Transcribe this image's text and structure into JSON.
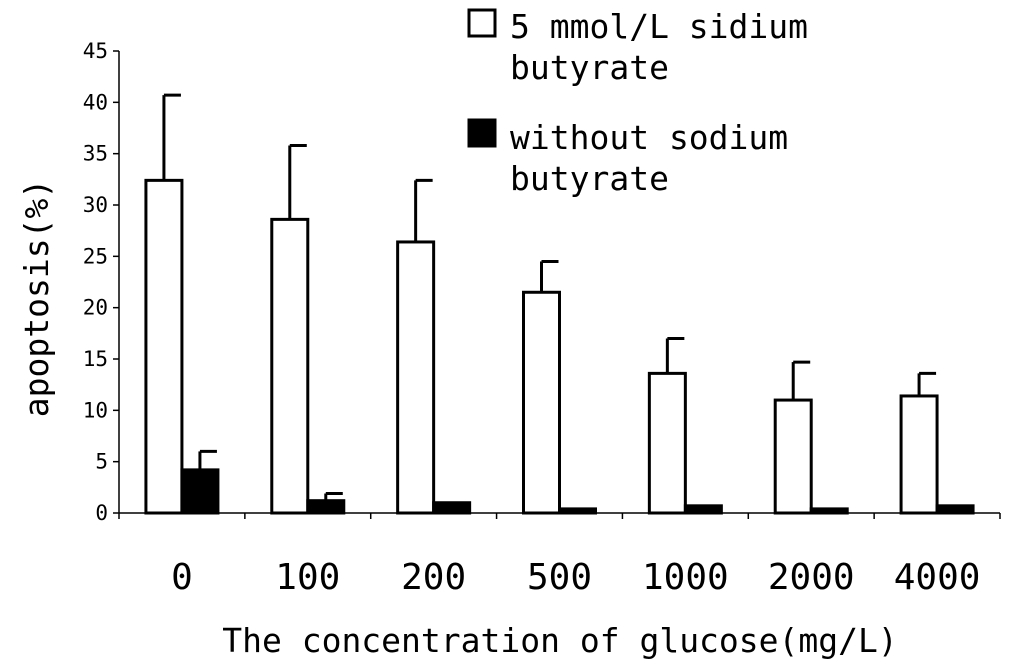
{
  "chart_data": {
    "type": "bar",
    "title": "",
    "xlabel": "The concentration of glucose(mg/L)",
    "ylabel": "apoptosis(%)",
    "ylim": [
      0,
      45
    ],
    "yticks": [
      0,
      5,
      10,
      15,
      20,
      25,
      30,
      35,
      40,
      45
    ],
    "categories": [
      "0",
      "100",
      "200",
      "500",
      "1000",
      "2000",
      "4000"
    ],
    "series": [
      {
        "name": "5 mmol/L sidium butyrate",
        "name_lines": [
          "5 mmol/L sidium",
          "butyrate"
        ],
        "fill": "#ffffff",
        "values": [
          32.4,
          28.6,
          26.4,
          21.5,
          13.6,
          11.0,
          11.4
        ],
        "errors": [
          8.3,
          7.2,
          6.0,
          3.0,
          3.4,
          3.7,
          2.2
        ]
      },
      {
        "name": "without sodium butyrate",
        "name_lines": [
          "without sodium",
          "butyrate"
        ],
        "fill": "#000000",
        "values": [
          4.2,
          1.2,
          1.0,
          0.4,
          0.7,
          0.4,
          0.7
        ],
        "errors": [
          1.8,
          0.7,
          0,
          0,
          0,
          0,
          0
        ]
      }
    ],
    "legend": "top-right",
    "grid": false
  }
}
